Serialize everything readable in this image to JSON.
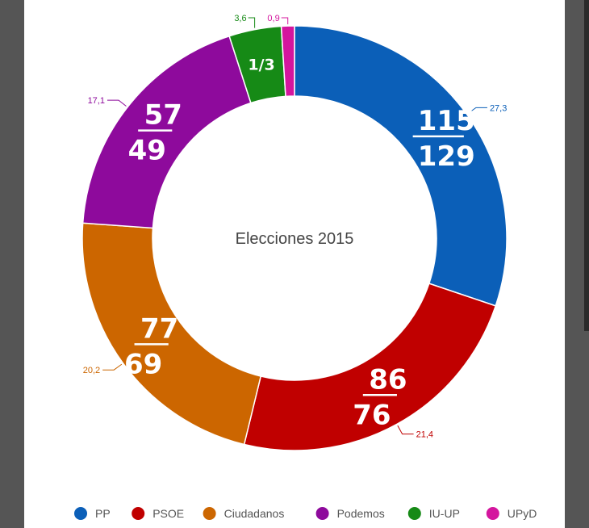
{
  "chart_data": {
    "type": "pie",
    "title": "Elecciones 2015",
    "series": [
      {
        "name": "PP",
        "value": 27.3,
        "label": "27,3",
        "color": "#0b5fb8",
        "seats_top": "115",
        "seats_bottom": "129"
      },
      {
        "name": "PSOE",
        "value": 21.4,
        "label": "21,4",
        "color": "#c00000",
        "seats_top": "86",
        "seats_bottom": "76"
      },
      {
        "name": "Ciudadanos",
        "value": 20.2,
        "label": "20,2",
        "color": "#cc6600",
        "seats_top": "77",
        "seats_bottom": "69"
      },
      {
        "name": "Podemos",
        "value": 17.1,
        "label": "17,1",
        "color": "#8e0a9c",
        "seats_top": "57",
        "seats_bottom": "49"
      },
      {
        "name": "IU-UP",
        "value": 3.6,
        "label": "3,6",
        "color": "#168a16",
        "seats_inline": "1/3"
      },
      {
        "name": "UPyD",
        "value": 0.9,
        "label": "0,9",
        "color": "#d4169e"
      }
    ],
    "legend_position": "bottom"
  }
}
